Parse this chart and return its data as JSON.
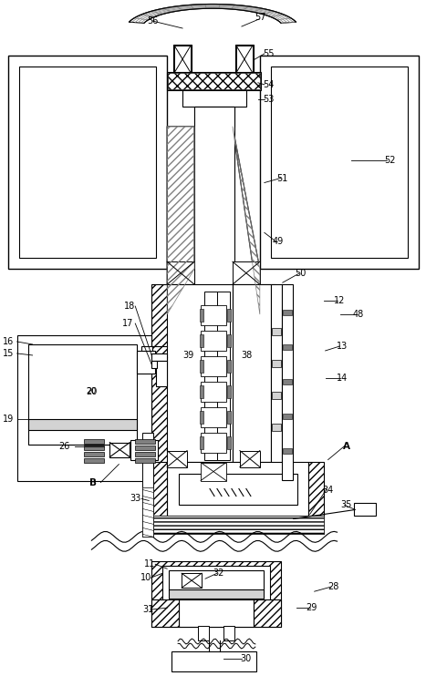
{
  "bg_color": "#ffffff",
  "lc": "#000000",
  "fig_width": 4.67,
  "fig_height": 7.42,
  "dpi": 100
}
